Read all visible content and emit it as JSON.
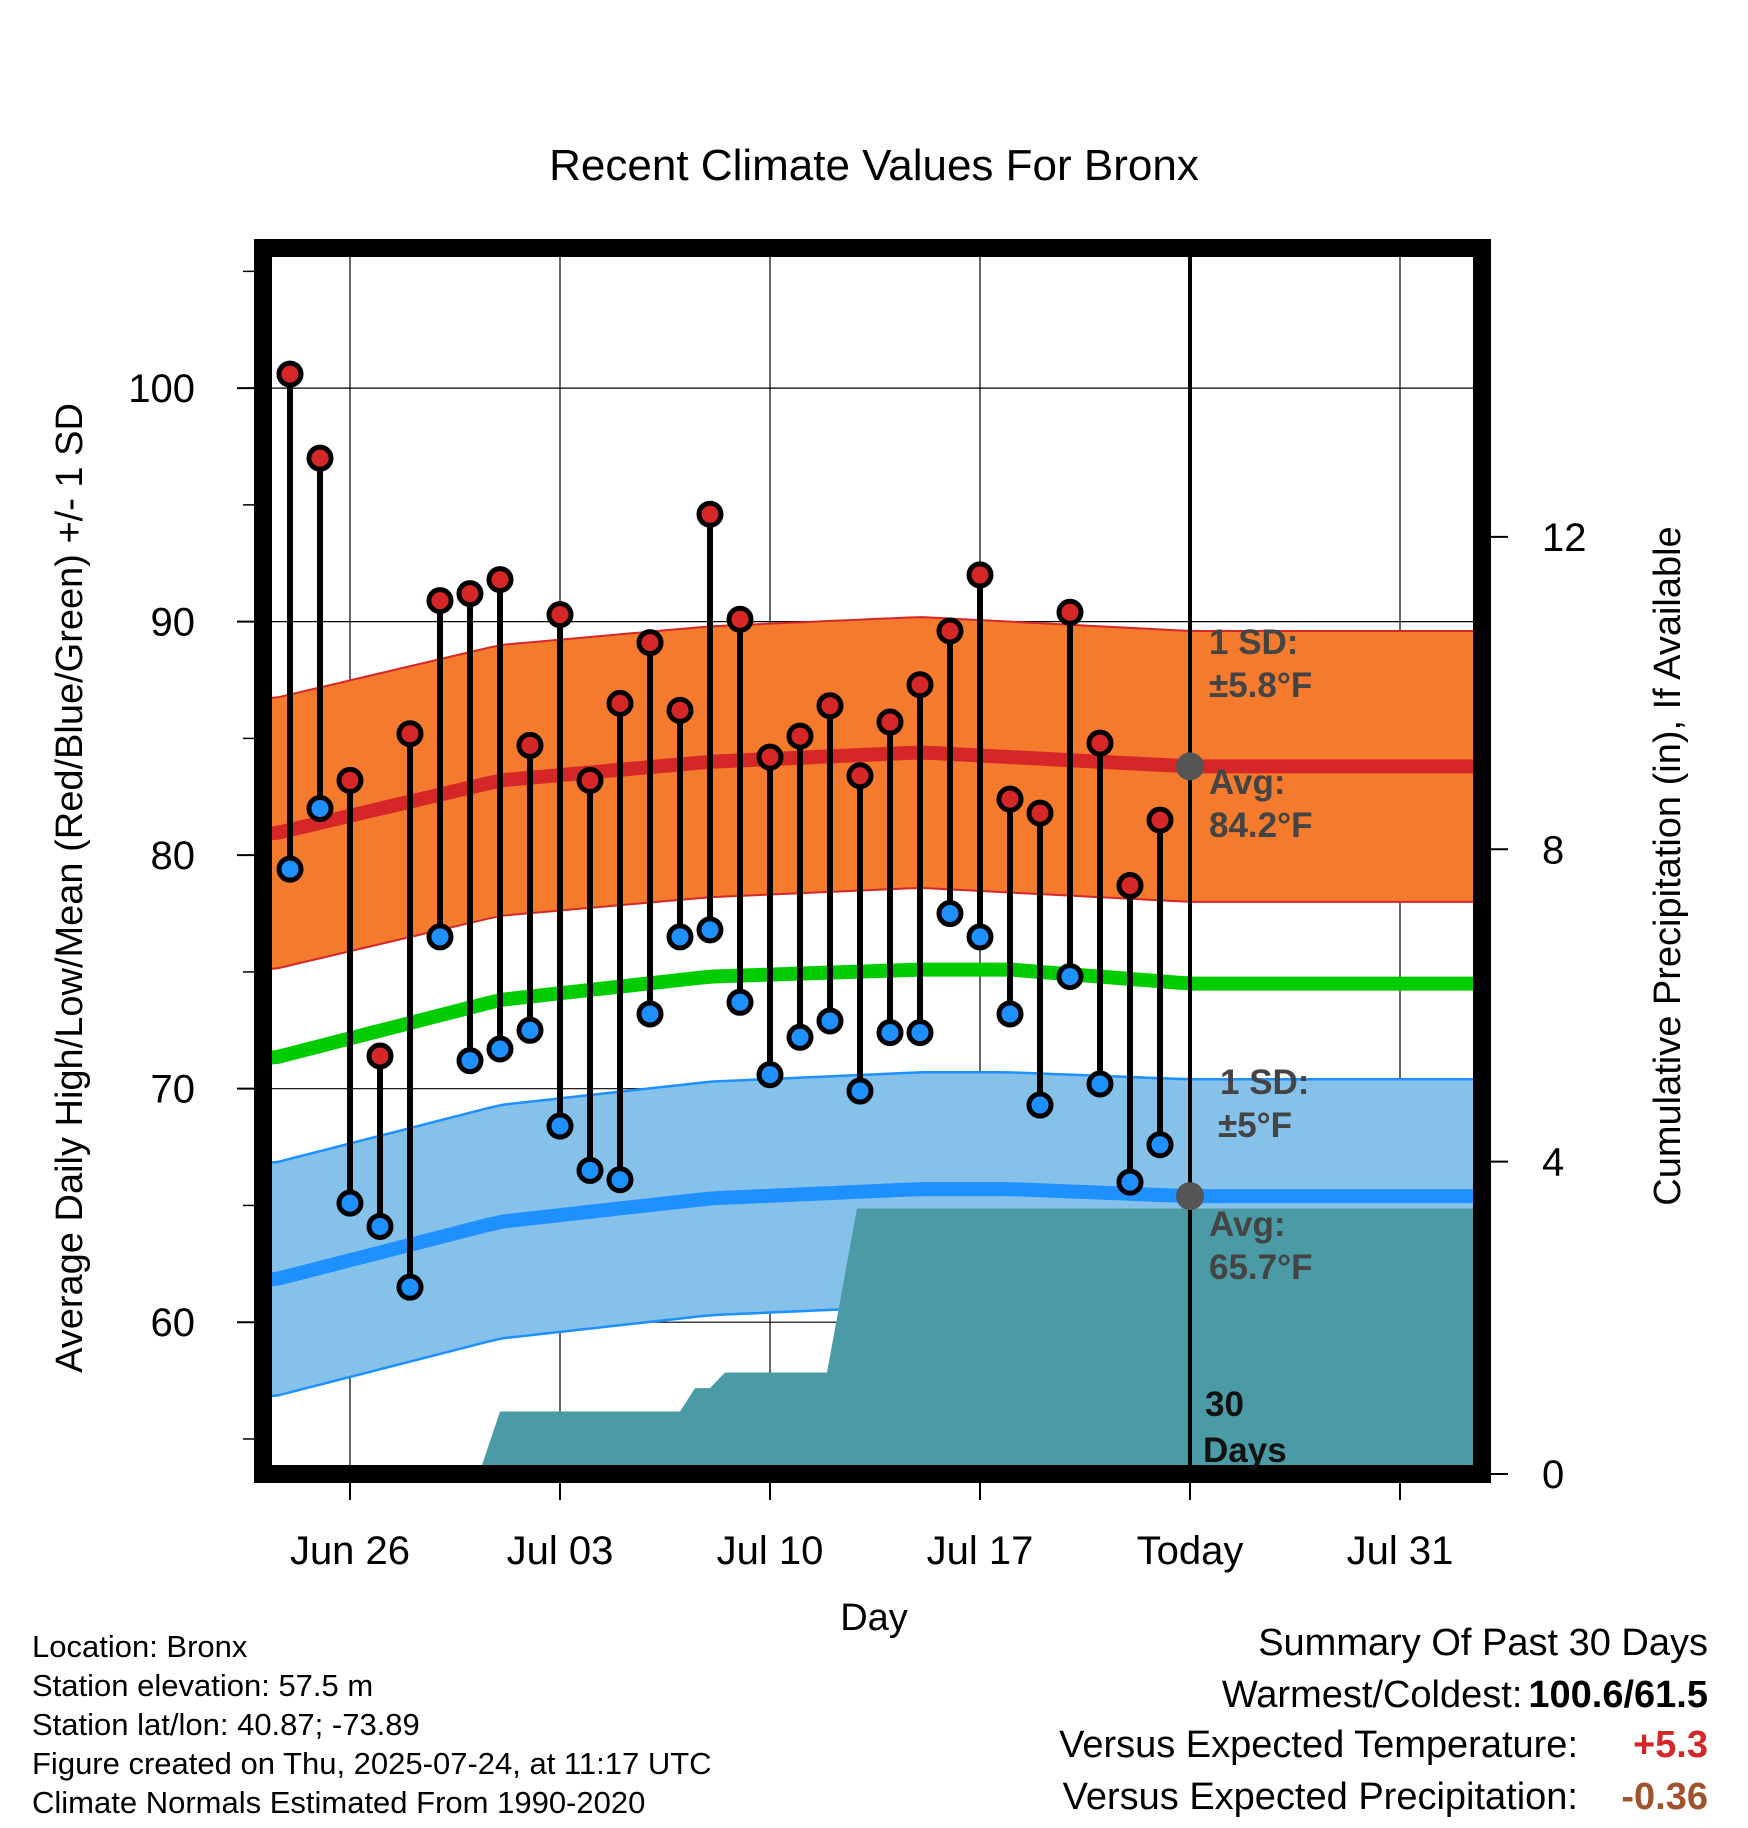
{
  "chart_data": {
    "type": "line",
    "title": "Recent Climate Values For Bronx",
    "xlabel": "Day",
    "ylabel": "Average Daily High/Low/Mean (Red/Blue/Green) +/- 1 SD",
    "y2label": "Cumulative Precipitation (in), If Available",
    "ylim": [
      53.5,
      106
    ],
    "y2lim": [
      0,
      15.7
    ],
    "x_ticks": [
      "Jun 26",
      "Jul 03",
      "Jul 10",
      "Jul 17",
      "Today",
      "Jul 31"
    ],
    "y_ticks": [
      60,
      70,
      80,
      90,
      100
    ],
    "y2_ticks": [
      0,
      4,
      8,
      12
    ],
    "grid": true,
    "dates": [
      "Jun 24",
      "Jun 25",
      "Jun 26",
      "Jun 27",
      "Jun 28",
      "Jun 29",
      "Jun 30",
      "Jul 01",
      "Jul 02",
      "Jul 03",
      "Jul 04",
      "Jul 05",
      "Jul 06",
      "Jul 07",
      "Jul 08",
      "Jul 09",
      "Jul 10",
      "Jul 11",
      "Jul 12",
      "Jul 13",
      "Jul 14",
      "Jul 15",
      "Jul 16",
      "Jul 17",
      "Jul 18",
      "Jul 19",
      "Jul 20",
      "Jul 21",
      "Jul 22",
      "Jul 23"
    ],
    "daily_high": [
      100.6,
      97.0,
      83.2,
      71.4,
      85.2,
      90.9,
      91.2,
      91.8,
      84.7,
      90.3,
      83.2,
      86.5,
      89.1,
      86.2,
      94.6,
      90.1,
      84.2,
      85.1,
      86.4,
      83.4,
      85.7,
      87.3,
      89.6,
      92.0,
      82.4,
      81.8,
      90.4,
      84.8,
      78.7,
      81.5
    ],
    "daily_low": [
      79.4,
      82.0,
      65.1,
      64.1,
      61.5,
      76.5,
      71.2,
      71.7,
      72.5,
      68.4,
      66.5,
      66.1,
      73.2,
      76.5,
      76.8,
      73.7,
      70.6,
      72.2,
      72.9,
      69.9,
      72.4,
      72.4,
      77.5,
      76.5,
      73.2,
      69.3,
      74.8,
      70.2,
      66.0,
      67.6
    ],
    "normal_series": [
      {
        "name": "Avg High",
        "color": "#d62728",
        "x": [
          -0.6,
          7,
          14,
          21,
          24,
          30
        ],
        "values": [
          80.9,
          83.2,
          84.0,
          84.4,
          84.2,
          83.8
        ]
      },
      {
        "name": "Avg Mean",
        "color": "#00cc00",
        "x": [
          -0.6,
          7,
          14,
          21,
          24,
          30
        ],
        "values": [
          71.3,
          73.8,
          74.8,
          75.1,
          75.1,
          74.5
        ]
      },
      {
        "name": "Avg Low",
        "color": "#1e90ff",
        "x": [
          -0.6,
          7,
          14,
          21,
          24,
          30
        ],
        "values": [
          61.8,
          64.3,
          65.3,
          65.7,
          65.7,
          65.4
        ]
      }
    ],
    "high_sd": 5.8,
    "low_sd": 5.0,
    "precip_cumulative": {
      "x": [
        6.3,
        7.0,
        13.0,
        13.5,
        14.0,
        14.5,
        17.9,
        18.9,
        20.9,
        21.4,
        21.8,
        30.6
      ],
      "values": [
        0,
        0.8,
        0.8,
        1.1,
        1.1,
        1.3,
        1.3,
        3.4,
        3.4,
        3.4,
        3.4,
        3.4
      ]
    },
    "annotations": {
      "high_sd_label": "1 SD:",
      "high_sd_value": "±5.8°F",
      "high_avg_label": "Avg:",
      "high_avg_value": "84.2°F",
      "low_sd_label": "1 SD:",
      "low_sd_value": "±5°F",
      "low_avg_label": "Avg:",
      "low_avg_value": "65.7°F",
      "days_num": "30",
      "days_label": "Days"
    },
    "colors": {
      "high_band": "#f47a2e",
      "low_band": "#85c1e8",
      "precip": "#4a9ba5",
      "high_dot": "#d62728",
      "low_dot": "#1e90ff"
    }
  },
  "info": {
    "location": "Location: Bronx",
    "elevation": "Station elevation: 57.5 m",
    "latlon": "Station lat/lon: 40.87; -73.89",
    "created": "Figure created on Thu, 2025-07-24, at 11:17 UTC",
    "normals": "Climate Normals Estimated From 1990-2020"
  },
  "summary": {
    "title": "Summary Of Past 30 Days",
    "warm_cold_label": "Warmest/Coldest:",
    "warm_cold_value": "100.6/61.5",
    "temp_label": "Versus Expected Temperature:",
    "temp_value": "+5.3",
    "temp_color": "#d62728",
    "precip_label": "Versus Expected Precipitation:",
    "precip_value": "-0.36",
    "precip_color": "#a0522d"
  }
}
